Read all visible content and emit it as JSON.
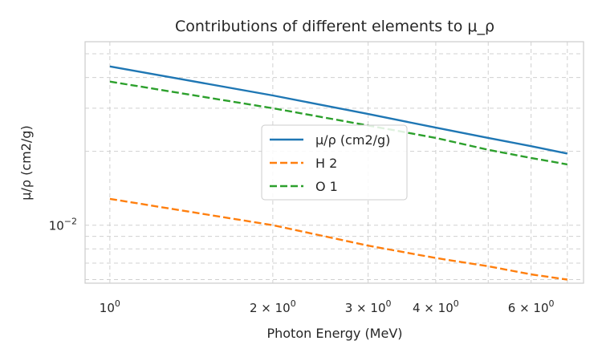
{
  "chart_data": {
    "type": "line",
    "title": "Contributions of different elements to μ_ρ",
    "xlabel": "Photon Energy (MeV)",
    "ylabel": "μ/ρ (cm2/g)",
    "xscale": "log",
    "yscale": "log",
    "xlim": [
      0.9,
      7.5
    ],
    "ylim": [
      0.0058,
      0.056
    ],
    "grid": true,
    "grid_style": "dashed",
    "legend_position": "center-right",
    "x": [
      1,
      2,
      3,
      4,
      5,
      6,
      7
    ],
    "series": [
      {
        "name": "μ/ρ (cm2/g)",
        "color": "#1f77b4",
        "dash": "solid",
        "values": [
          0.0444,
          0.0338,
          0.0284,
          0.025,
          0.0227,
          0.021,
          0.0196
        ]
      },
      {
        "name": "H 2",
        "color": "#ff7f0e",
        "dash": "dashed",
        "values": [
          0.0128,
          0.01,
          0.00825,
          0.00735,
          0.0068,
          0.0063,
          0.006
        ]
      },
      {
        "name": "O 1",
        "color": "#2ca02c",
        "dash": "dashed",
        "values": [
          0.0385,
          0.03,
          0.0255,
          0.0227,
          0.0203,
          0.0188,
          0.0177
        ]
      }
    ],
    "x_tick_labels": [
      {
        "value": 1,
        "base": "10",
        "exp": "0"
      },
      {
        "value": 2,
        "base": "2 × 10",
        "exp": "0"
      },
      {
        "value": 3,
        "base": "3 × 10",
        "exp": "0"
      },
      {
        "value": 4,
        "base": "4 × 10",
        "exp": "0"
      },
      {
        "value": 6,
        "base": "6 × 10",
        "exp": "0"
      }
    ],
    "y_tick_labels": [
      {
        "value": 0.01,
        "base": "10",
        "exp": "−2"
      }
    ],
    "x_minor_grid": [
      5,
      7
    ],
    "y_grid": [
      0.006,
      0.007,
      0.008,
      0.009,
      0.01,
      0.02,
      0.03,
      0.04,
      0.05
    ]
  }
}
